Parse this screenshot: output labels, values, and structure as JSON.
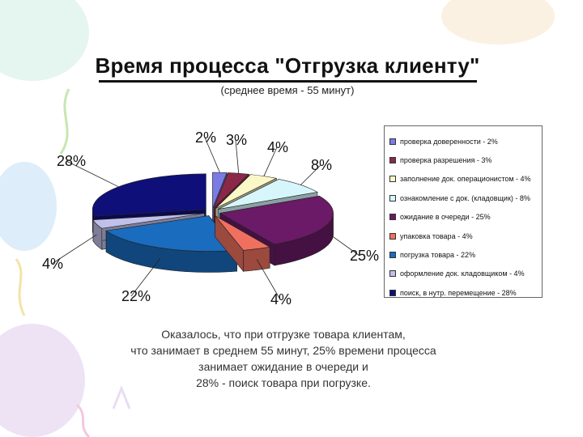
{
  "chart_data": {
    "type": "pie",
    "title": "Время процесса \"Отгрузка клиенту\"",
    "subtitle": "(среднее время - 55 минут)",
    "legend_position": "right",
    "slices": [
      {
        "legend": "проверка доверенности - 2%",
        "value": 2,
        "label": "2%",
        "color": "#7b7be6"
      },
      {
        "legend": "проверка разрешения - 3%",
        "value": 3,
        "label": "3%",
        "color": "#8b2848"
      },
      {
        "legend": "заполнение док. операционистом - 4%",
        "value": 4,
        "label": "4%",
        "color": "#fbf8c8"
      },
      {
        "legend": "ознакомление с док. (кладовщик) - 8%",
        "value": 8,
        "label": "8%",
        "color": "#d6f6fb"
      },
      {
        "legend": "ожидание в очереди - 25%",
        "value": 25,
        "label": "25%",
        "color": "#6a1a66"
      },
      {
        "legend": "упаковка товара - 4%",
        "value": 4,
        "label": "4%",
        "color": "#f07060"
      },
      {
        "legend": "погрузка товара - 22%",
        "value": 22,
        "label": "22%",
        "color": "#1a6cbf"
      },
      {
        "legend": "оформление док. кладовщиком - 4%",
        "value": 4,
        "label": "4%",
        "color": "#c0c0ea"
      },
      {
        "legend": "поиск, в нутр. перемещение - 28%",
        "value": 28,
        "label": "28%",
        "color": "#0f0f7a"
      }
    ]
  },
  "caption": {
    "line1": "Оказалось, что при отгрузке товара клиентам,",
    "line2": "что занимает в среднем 55 минут, 25% времени процесса",
    "line3": "занимает ожидание в очереди и",
    "line4": "28% - поиск товара при погрузке."
  }
}
